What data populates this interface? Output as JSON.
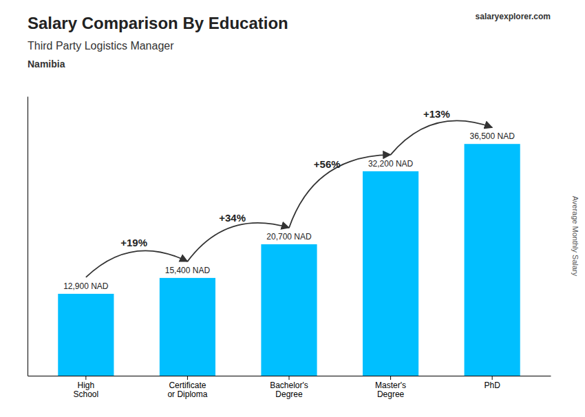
{
  "chart_data": {
    "type": "bar",
    "title": "Salary Comparison By Education",
    "subtitle": "Third Party Logistics Manager",
    "country": "Namibia",
    "source": [
      "salary",
      "explorer.com"
    ],
    "ylabel": "Average Monthly Salary",
    "categories": [
      "High\nSchool",
      "Certificate\nor Diploma",
      "Bachelor's\nDegree",
      "Master's\nDegree",
      "PhD"
    ],
    "values": [
      12900,
      15400,
      20700,
      32200,
      36500
    ],
    "value_labels": [
      "12,900 NAD",
      "15,400 NAD",
      "20,700 NAD",
      "32,200 NAD",
      "36,500 NAD"
    ],
    "data_labels": true,
    "annotations": [
      "+19%",
      "+34%",
      "+56%",
      "+13%"
    ],
    "color": "#00BFFF",
    "ylim": [
      0,
      44000
    ],
    "yticks": [],
    "grid": false,
    "tick_labels": "x"
  }
}
